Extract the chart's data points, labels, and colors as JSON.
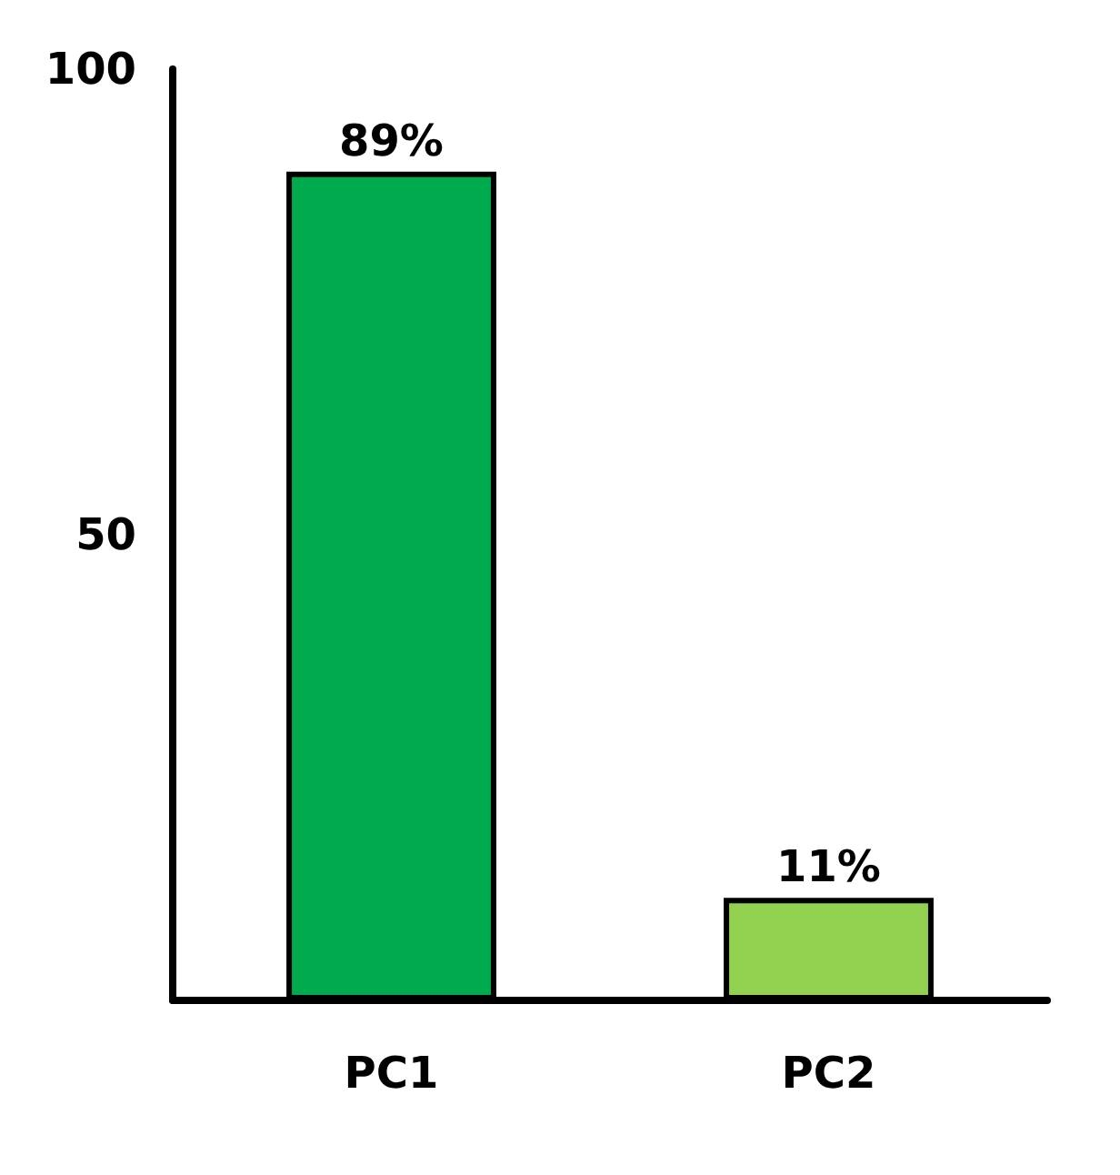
{
  "chart_data": {
    "type": "bar",
    "categories": [
      "PC1",
      "PC2"
    ],
    "values": [
      89,
      11
    ],
    "colors": [
      "#00ab4e",
      "#92d050"
    ],
    "value_labels": [
      "89%",
      "11%"
    ],
    "ylim": [
      0,
      100
    ],
    "yticks": [
      50,
      100
    ],
    "grid": false
  }
}
